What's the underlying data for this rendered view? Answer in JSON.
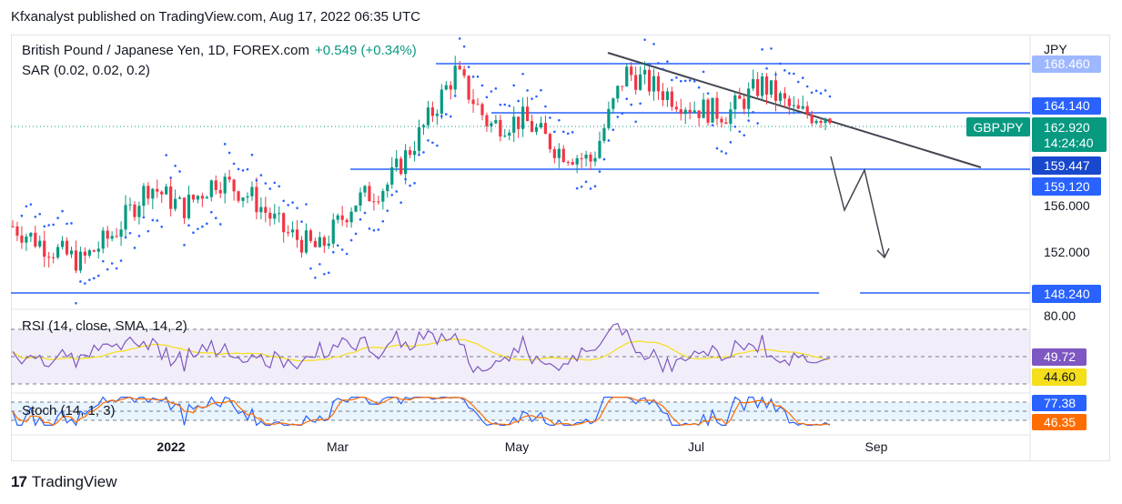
{
  "header": {
    "published": "Kfxanalyst published on TradingView.com, Aug 17, 2022 06:35 UTC"
  },
  "legend": {
    "symbol": "British Pound / Japanese Yen, 1D, FOREX.com",
    "change": "+0.549 (+0.34%)",
    "sar": "SAR (0.02, 0.02, 0.2)",
    "rsi": "RSI (14, close, SMA, 14, 2)",
    "stoch": "Stoch (14, 1, 3)"
  },
  "price_axis": {
    "currency": "JPY",
    "ticks": [
      {
        "value": "168.460",
        "kind": "blue-faded"
      },
      {
        "value": "164.140",
        "kind": "blue"
      },
      {
        "value": "162.920",
        "kind": "green"
      },
      {
        "value": "14:24:40",
        "kind": "green-sub"
      },
      {
        "value": "159.447",
        "kind": "blue-dark"
      },
      {
        "value": "159.120",
        "kind": "blue"
      },
      {
        "value": "156.000",
        "kind": "plain"
      },
      {
        "value": "152.000",
        "kind": "plain"
      },
      {
        "value": "148.240",
        "kind": "blue"
      },
      {
        "value": "80.00",
        "kind": "plain"
      },
      {
        "value": "49.72",
        "kind": "purple"
      },
      {
        "value": "44.60",
        "kind": "yellow"
      },
      {
        "value": "77.38",
        "kind": "blue"
      },
      {
        "value": "46.35",
        "kind": "orange"
      }
    ]
  },
  "symbol_tag": "GBPJPY",
  "time_axis": [
    "2022",
    "Mar",
    "May",
    "Jul",
    "Sep"
  ],
  "footer": {
    "brand": "TradingView",
    "logo": "tradingview-logo-icon"
  },
  "colors": {
    "up": "#089981",
    "down": "#f23645",
    "line": "#2962ff",
    "trend": "#434651",
    "rsi": "#7e57c2",
    "rsi_ma": "#f5de1a",
    "stoch_k": "#2962ff",
    "stoch_d": "#ff6d00"
  },
  "chart_data": {
    "type": "candlestick",
    "series": [
      {
        "name": "GBPJPY",
        "close": [
          153.5,
          151.8,
          150.5,
          153.0,
          157.0,
          155.0,
          157.5,
          156.0,
          153.0,
          151.5,
          155.5,
          157.0,
          161.5,
          166.5,
          162.0,
          162.5,
          160.0,
          159.0,
          166.5,
          165.0,
          163.5,
          163.0,
          165.5,
          163.0,
          162.92
        ]
      }
    ],
    "horizontal_levels": [
      168.46,
      164.14,
      159.447,
      148.24
    ],
    "ylim": [
      146.5,
      169.5
    ]
  }
}
